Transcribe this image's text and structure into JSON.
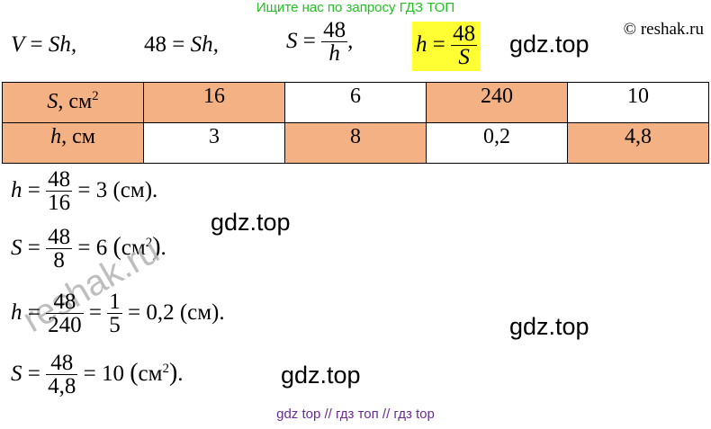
{
  "header": {
    "link_text": "Ищите нас по запросу ГДЗ ТОП",
    "copyright": "© reshak.ru"
  },
  "formula_line": {
    "f1_lhs": "V",
    "f1_eq": "=",
    "f1_rhs": "Sh,",
    "f2_lhs": "48",
    "f2_eq": "=",
    "f2_rhs": "Sh,",
    "f3_lhs": "S",
    "f3_eq": "=",
    "f3_num": "48",
    "f3_den": "h",
    "f3_tail": ",",
    "f4_lhs": "h",
    "f4_eq": "=",
    "f4_num": "48",
    "f4_den": "S"
  },
  "watermarks": [
    "gdz.top",
    "gdz.top",
    "gdz.top",
    "gdz.top"
  ],
  "faint_watermark": "reshak.ru",
  "table": {
    "row1_header_var": "S",
    "row1_header_unit": ", см",
    "row1_header_sup": "2",
    "row1_values": [
      "16",
      "6",
      "240",
      "10"
    ],
    "row2_header_var": "h",
    "row2_header_unit": ", см",
    "row2_values": [
      "3",
      "8",
      "0,2",
      "4,8"
    ]
  },
  "solutions": {
    "s1": {
      "lhs": "h",
      "num": "48",
      "den": "16",
      "result": "= 3 (см)."
    },
    "s2": {
      "lhs": "S",
      "num": "48",
      "den": "8",
      "result": "= 6",
      "unit": "см",
      "sup": "2",
      "tail": "."
    },
    "s3": {
      "lhs": "h",
      "num": "48",
      "den": "240",
      "mid": "=",
      "num2": "1",
      "den2": "5",
      "result": "= 0,2 (см)."
    },
    "s4": {
      "lhs": "S",
      "num": "48",
      "den": "4,8",
      "result": "= 10",
      "unit": "см",
      "sup": "2",
      "tail": "."
    }
  },
  "footer": {
    "links": "gdz top  //  гдз топ  //  гдз top"
  }
}
